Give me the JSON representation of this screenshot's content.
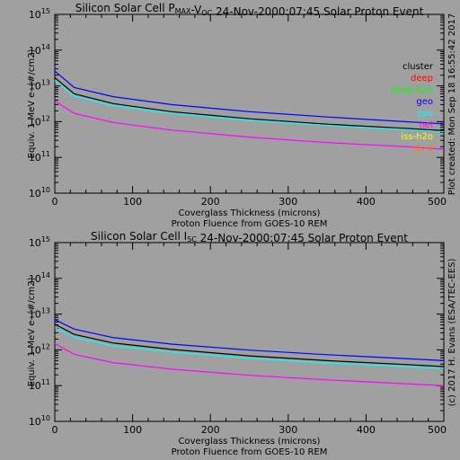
{
  "side_labels": {
    "created": "Plot created: Mon Sep 18 16:55:42 2017",
    "credit": "(c) 2017 H. Evans (ESA/TEC-EES)"
  },
  "legend": {
    "entries": [
      {
        "label": "cluster",
        "color": "#000000"
      },
      {
        "label": "deep",
        "color": "#ff0000"
      },
      {
        "label": "deep-h2o",
        "color": "#00ff00"
      },
      {
        "label": "geo",
        "color": "#0000ff"
      },
      {
        "label": "gps",
        "color": "#00ffff"
      },
      {
        "label": "hel",
        "color": "#ff00ff"
      },
      {
        "label": "iss-h2o",
        "color": "#ffff00"
      },
      {
        "label": "iss-d",
        "color": "#ff8000"
      }
    ]
  },
  "chart_data": [
    {
      "type": "line",
      "title": "Silicon Solar Cell Pmax-Voc 24-Nov-2000:07:45 Solar Proton Event",
      "title_parts": {
        "pre": "Silicon Solar Cell P",
        "sub1": "MAX",
        "mid": "-V",
        "sub2": "OC",
        "post": " 24-Nov-2000:07:45 Solar Proton Event"
      },
      "xlabel": "Coverglass Thickness (microns)",
      "xlabel2": "Proton Fluence from GOES-10 REM",
      "ylabel": "Equiv. 1 MeV e- (#/cm2)",
      "xlim": [
        0,
        500
      ],
      "ylim": [
        10000000000.0,
        1000000000000000.0
      ],
      "yscale": "log",
      "x_ticks": [
        "0",
        "100",
        "200",
        "300",
        "400",
        "500"
      ],
      "y_ticks": [
        {
          "base": "10",
          "exp": "10"
        },
        {
          "base": "10",
          "exp": "11"
        },
        {
          "base": "10",
          "exp": "12"
        },
        {
          "base": "10",
          "exp": "13"
        },
        {
          "base": "10",
          "exp": "14"
        },
        {
          "base": "10",
          "exp": "15"
        }
      ],
      "x": [
        0,
        25,
        75,
        150,
        250,
        350,
        450,
        500
      ],
      "series": [
        {
          "name": "geo",
          "color": "#0000ff",
          "values": [
            26000000000000.0,
            9000000000000.0,
            5000000000000.0,
            3000000000000.0,
            1900000000000.0,
            1350000000000.0,
            1000000000000.0,
            870000000000.0
          ]
        },
        {
          "name": "gps",
          "color": "#00ffff",
          "values": [
            14000000000000.0,
            5200000000000.0,
            2800000000000.0,
            1700000000000.0,
            1100000000000.0,
            780000000000.0,
            600000000000.0,
            520000000000.0
          ]
        },
        {
          "name": "cluster",
          "color": "#000000",
          "values": [
            17000000000000.0,
            6000000000000.0,
            3200000000000.0,
            1900000000000.0,
            1200000000000.0,
            850000000000.0,
            650000000000.0,
            560000000000.0
          ]
        },
        {
          "name": "hel",
          "color": "#ff00ff",
          "values": [
            3800000000000.0,
            1700000000000.0,
            950000000000.0,
            580000000000.0,
            370000000000.0,
            260000000000.0,
            200000000000.0,
            170000000000.0
          ]
        }
      ]
    },
    {
      "type": "line",
      "title": "Silicon Solar Cell Isc 24-Nov-2000:07:45 Solar Proton Event",
      "title_parts": {
        "pre": "Silicon Solar Cell I",
        "sub1": "SC",
        "mid": "",
        "sub2": "",
        "post": " 24-Nov-2000:07:45 Solar Proton Event"
      },
      "xlabel": "Coverglass Thickness (microns)",
      "xlabel2": "Proton Fluence from GOES-10 REM",
      "ylabel": "Equiv. 1 MeV e- (#/cm2)",
      "xlim": [
        0,
        500
      ],
      "ylim": [
        10000000000.0,
        1000000000000000.0
      ],
      "yscale": "log",
      "x_ticks": [
        "0",
        "100",
        "200",
        "300",
        "400",
        "500"
      ],
      "y_ticks": [
        {
          "base": "10",
          "exp": "10"
        },
        {
          "base": "10",
          "exp": "11"
        },
        {
          "base": "10",
          "exp": "12"
        },
        {
          "base": "10",
          "exp": "13"
        },
        {
          "base": "10",
          "exp": "14"
        },
        {
          "base": "10",
          "exp": "15"
        }
      ],
      "x": [
        0,
        25,
        75,
        150,
        250,
        350,
        450,
        500
      ],
      "series": [
        {
          "name": "geo",
          "color": "#0000ff",
          "values": [
            7000000000000.0,
            3800000000000.0,
            2200000000000.0,
            1450000000000.0,
            980000000000.0,
            730000000000.0,
            570000000000.0,
            500000000000.0
          ]
        },
        {
          "name": "gps",
          "color": "#00ffff",
          "values": [
            4200000000000.0,
            2200000000000.0,
            1300000000000.0,
            870000000000.0,
            580000000000.0,
            430000000000.0,
            340000000000.0,
            300000000000.0
          ]
        },
        {
          "name": "cluster",
          "color": "#000000",
          "values": [
            5200000000000.0,
            2700000000000.0,
            1550000000000.0,
            1030000000000.0,
            680000000000.0,
            500000000000.0,
            390000000000.0,
            340000000000.0
          ]
        },
        {
          "name": "hel",
          "color": "#ff00ff",
          "values": [
            1500000000000.0,
            750000000000.0,
            440000000000.0,
            290000000000.0,
            195000000000.0,
            145000000000.0,
            113000000000.0,
            100000000000.0
          ]
        }
      ]
    }
  ]
}
